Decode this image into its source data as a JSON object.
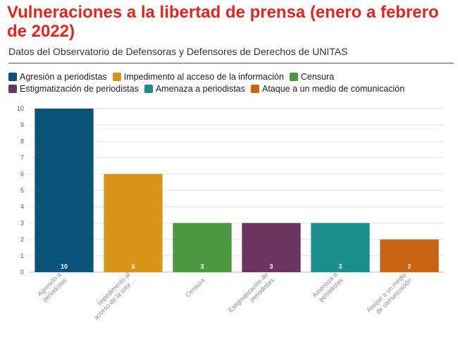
{
  "title": "Vulneraciones a la libertad de prensa (enero a febrero de 2022)",
  "subtitle": "Datos del Observatorio de Defensoras y Defensores de Derechos de UNITAS",
  "chart_data": {
    "type": "bar",
    "categories": [
      "Agresión a periodistas",
      "Impedimento al acceso de la información",
      "Censura",
      "Estigmatización de periodistas",
      "Amenaza a periodistas",
      "Ataque a un medio de comunicación"
    ],
    "axis_labels": [
      [
        "Agresión a",
        "periodistas"
      ],
      [
        "Impedimento al",
        "acceso de la infor…"
      ],
      [
        "Censura"
      ],
      [
        "Estigmatización de",
        "periodistas"
      ],
      [
        "Amenaza a",
        "periodistas"
      ],
      [
        "Ataque a un medio",
        "de comunicación"
      ]
    ],
    "values": [
      10,
      6,
      3,
      3,
      3,
      2
    ],
    "colors": [
      "#0a5479",
      "#d89518",
      "#4b9840",
      "#6b3560",
      "#1c8f8a",
      "#c96415"
    ],
    "ylim": [
      0,
      10
    ],
    "yticks": [
      0,
      1,
      2,
      3,
      4,
      5,
      6,
      7,
      8,
      9,
      10
    ],
    "grid": true,
    "legend_position": "top"
  }
}
